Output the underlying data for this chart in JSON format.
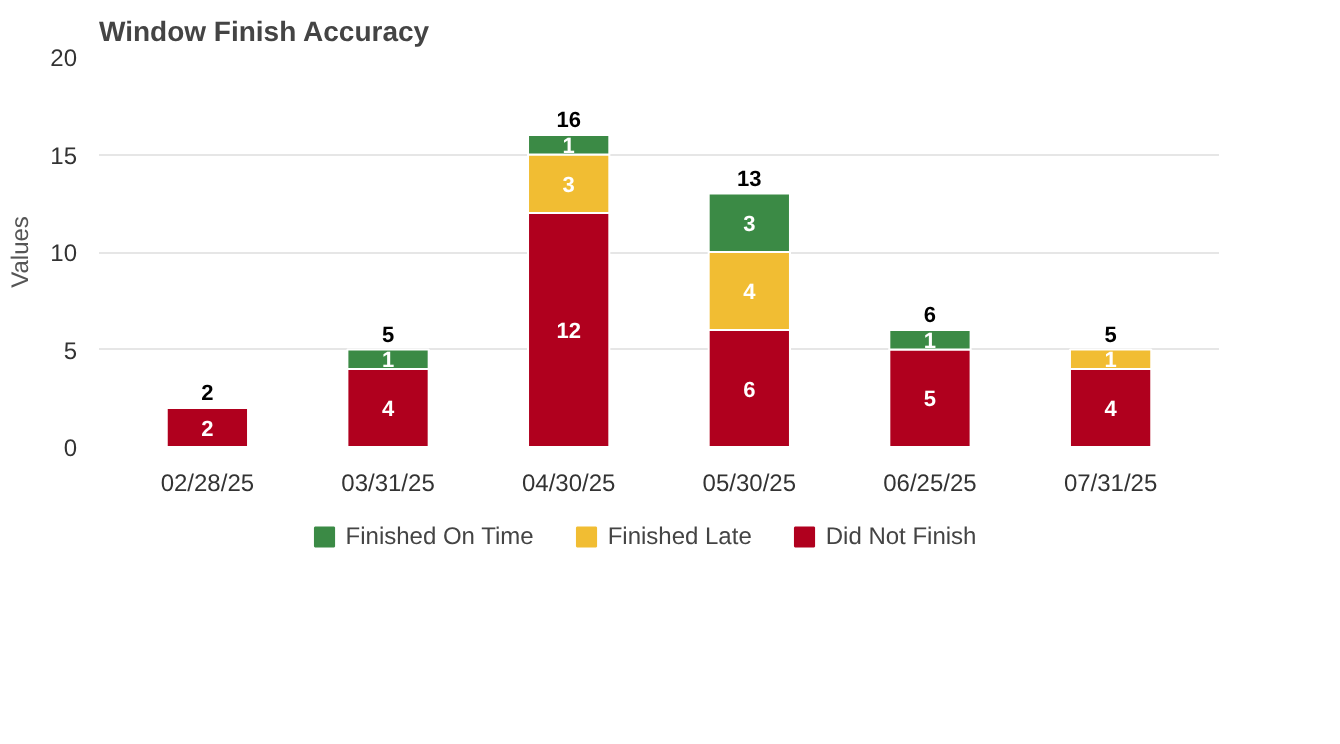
{
  "chart_data": {
    "type": "bar",
    "title": "Window Finish Accuracy",
    "ylabel": "Values",
    "categories": [
      "02/28/25",
      "03/31/25",
      "04/30/25",
      "05/30/25",
      "06/25/25",
      "07/31/25"
    ],
    "stacked": true,
    "series": [
      {
        "name": "Did Not Finish",
        "color": "#b0001e",
        "values": [
          2,
          4,
          12,
          6,
          5,
          4
        ]
      },
      {
        "name": "Finished Late",
        "color": "#f1bd33",
        "values": [
          null,
          null,
          3,
          4,
          null,
          1
        ]
      },
      {
        "name": "Finished On Time",
        "color": "#3b8a45",
        "values": [
          null,
          1,
          1,
          3,
          1,
          null
        ]
      }
    ],
    "totals": [
      "2",
      "5",
      "16",
      "13",
      "6",
      "5"
    ],
    "data_labels": true,
    "ylim": [
      0,
      20
    ],
    "yticks": [
      0,
      5,
      10,
      15,
      20
    ],
    "grid": "y",
    "legend": "bottom"
  }
}
